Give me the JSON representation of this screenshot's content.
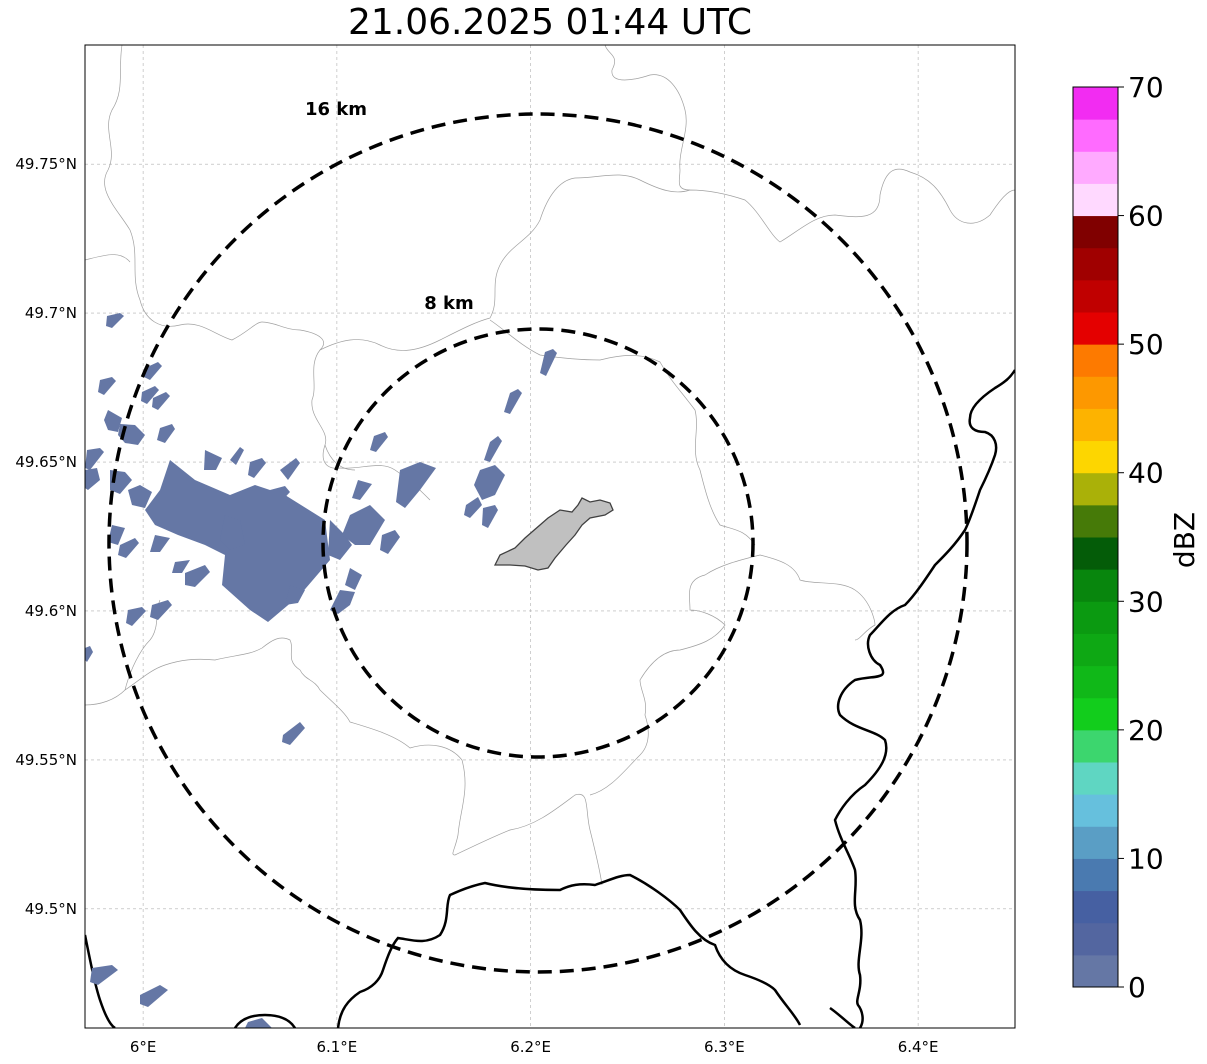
{
  "title": "21.06.2025 01:44 UTC",
  "map": {
    "lon_range": [
      5.97,
      6.45
    ],
    "lat_range": [
      49.46,
      49.79
    ],
    "lon_ticks": [
      {
        "value": 6.0,
        "label": "6°E"
      },
      {
        "value": 6.1,
        "label": "6.1°E"
      },
      {
        "value": 6.2,
        "label": "6.2°E"
      },
      {
        "value": 6.3,
        "label": "6.3°E"
      },
      {
        "value": 6.4,
        "label": "6.4°E"
      }
    ],
    "lat_ticks": [
      {
        "value": 49.75,
        "label": "49.75°N"
      },
      {
        "value": 49.7,
        "label": "49.7°N"
      },
      {
        "value": 49.65,
        "label": "49.65°N"
      },
      {
        "value": 49.6,
        "label": "49.6°N"
      },
      {
        "value": 49.55,
        "label": "49.55°N"
      },
      {
        "value": 49.5,
        "label": "49.5°N"
      }
    ],
    "grid": true,
    "range_rings": [
      {
        "label": "16 km",
        "radius_km": 16
      },
      {
        "label": "8 km",
        "radius_km": 8
      }
    ],
    "highlighted_area_color": "#c0c0c0",
    "echo_color": "#6577a5"
  },
  "colorbar": {
    "label": "dBZ",
    "min": 0,
    "max": 70,
    "tick_labels": [
      "0",
      "10",
      "20",
      "30",
      "40",
      "50",
      "60",
      "70"
    ],
    "colors": [
      "#6577a5",
      "#5366a0",
      "#4660a2",
      "#4a7ab0",
      "#5a9ec5",
      "#66c0dd",
      "#5fd6c2",
      "#3cd66e",
      "#12cd1c",
      "#10b818",
      "#0ea814",
      "#0b9a11",
      "#08860d",
      "#045c08",
      "#467a08",
      "#aab108",
      "#fdd600",
      "#fdb300",
      "#fd9800",
      "#fd7a00",
      "#e40000",
      "#c00000",
      "#a00000",
      "#800000",
      "#ffd9ff",
      "#ffaaff",
      "#ff6bff",
      "#f22cf2"
    ]
  }
}
